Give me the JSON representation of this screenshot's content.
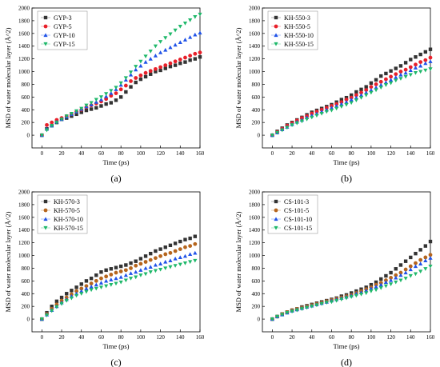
{
  "chart_data": [
    {
      "type": "scatter",
      "panel_label": "(a)",
      "xlabel": "Time (ps)",
      "ylabel": "MSD of water molecular layer (Å^2)",
      "xlim": [
        -10,
        160
      ],
      "ylim": [
        -200,
        2000
      ],
      "xticks": [
        "0",
        "20",
        "40",
        "60",
        "80",
        "100",
        "120",
        "140",
        "160"
      ],
      "yticks": [
        "0",
        "200",
        "400",
        "600",
        "800",
        "1000",
        "1200",
        "1400",
        "1600",
        "1800",
        "2000"
      ],
      "legend_position": "top-left",
      "series": [
        {
          "name": "GYP-3",
          "color": "#333333",
          "marker": "square",
          "values": [
            0,
            100,
            150,
            200,
            250,
            270,
            300,
            330,
            360,
            390,
            410,
            430,
            460,
            490,
            510,
            550,
            600,
            680,
            760,
            830,
            880,
            920,
            960,
            1000,
            1020,
            1050,
            1080,
            1100,
            1130,
            1150,
            1180,
            1200,
            1230,
            1260,
            1280,
            1300
          ]
        },
        {
          "name": "GYP-5",
          "color": "#e8202a",
          "marker": "circle",
          "values": [
            0,
            160,
            200,
            240,
            270,
            300,
            330,
            370,
            400,
            440,
            470,
            500,
            530,
            570,
            620,
            660,
            720,
            780,
            850,
            900,
            940,
            980,
            1010,
            1040,
            1070,
            1100,
            1130,
            1160,
            1190,
            1220,
            1250,
            1280,
            1300,
            1330,
            1370,
            1400
          ]
        },
        {
          "name": "GYP-10",
          "color": "#2053e8",
          "marker": "triangle-up",
          "values": [
            0,
            100,
            150,
            210,
            250,
            290,
            330,
            370,
            410,
            450,
            480,
            520,
            560,
            610,
            660,
            720,
            790,
            870,
            950,
            1030,
            1090,
            1150,
            1200,
            1250,
            1300,
            1340,
            1380,
            1420,
            1460,
            1500,
            1540,
            1580,
            1610,
            1640,
            1670,
            1700
          ]
        },
        {
          "name": "GYP-15",
          "color": "#1fb86a",
          "marker": "triangle-down",
          "values": [
            0,
            80,
            150,
            200,
            250,
            300,
            340,
            380,
            420,
            470,
            510,
            560,
            600,
            650,
            700,
            750,
            820,
            900,
            990,
            1080,
            1160,
            1240,
            1320,
            1400,
            1470,
            1530,
            1590,
            1650,
            1710,
            1760,
            1810,
            1860,
            1900,
            1940,
            1970,
            1990
          ]
        }
      ]
    },
    {
      "type": "scatter",
      "panel_label": "(b)",
      "xlabel": "Time (ps)",
      "ylabel": "MSD of water molecular layer (Å^2)",
      "xlim": [
        -10,
        160
      ],
      "ylim": [
        -200,
        2000
      ],
      "xticks": [
        "0",
        "20",
        "40",
        "60",
        "80",
        "100",
        "120",
        "140",
        "160"
      ],
      "yticks": [
        "0",
        "200",
        "400",
        "600",
        "800",
        "1000",
        "1200",
        "1400",
        "1600",
        "1800",
        "2000"
      ],
      "legend_position": "top-left",
      "series": [
        {
          "name": "KH-550-3",
          "color": "#333333",
          "marker": "square",
          "values": [
            0,
            60,
            110,
            160,
            200,
            240,
            280,
            320,
            360,
            390,
            420,
            450,
            480,
            520,
            560,
            590,
            630,
            680,
            720,
            760,
            820,
            870,
            930,
            970,
            1010,
            1050,
            1090,
            1140,
            1190,
            1230,
            1270,
            1310,
            1350,
            1390,
            1430,
            1470
          ]
        },
        {
          "name": "KH-550-5",
          "color": "#e8202a",
          "marker": "circle",
          "values": [
            0,
            50,
            100,
            150,
            190,
            230,
            270,
            300,
            340,
            370,
            400,
            430,
            460,
            490,
            520,
            560,
            590,
            630,
            670,
            710,
            760,
            800,
            840,
            880,
            920,
            960,
            1000,
            1030,
            1070,
            1110,
            1150,
            1180,
            1220,
            1250,
            1280,
            1310
          ]
        },
        {
          "name": "KH-550-10",
          "color": "#2053e8",
          "marker": "triangle-up",
          "values": [
            0,
            40,
            90,
            130,
            170,
            210,
            240,
            280,
            310,
            340,
            370,
            400,
            430,
            460,
            490,
            520,
            560,
            590,
            630,
            670,
            710,
            750,
            790,
            830,
            870,
            910,
            950,
            980,
            1020,
            1060,
            1090,
            1130,
            1160,
            1190,
            1220,
            1250
          ]
        },
        {
          "name": "KH-550-15",
          "color": "#1fb86a",
          "marker": "triangle-down",
          "values": [
            0,
            40,
            80,
            120,
            160,
            190,
            220,
            250,
            280,
            310,
            340,
            370,
            390,
            420,
            450,
            480,
            510,
            550,
            590,
            630,
            670,
            710,
            750,
            790,
            820,
            860,
            890,
            920,
            950,
            980,
            1000,
            1020,
            1040,
            1060,
            1080,
            1090
          ]
        }
      ]
    },
    {
      "type": "scatter",
      "panel_label": "(c)",
      "xlabel": "Time (ps)",
      "ylabel": "MSD of water molecular layer (Å^2)",
      "xlim": [
        -10,
        160
      ],
      "ylim": [
        -200,
        2000
      ],
      "xticks": [
        "0",
        "20",
        "40",
        "60",
        "80",
        "100",
        "120",
        "140",
        "160"
      ],
      "yticks": [
        "0",
        "200",
        "400",
        "600",
        "800",
        "1000",
        "1200",
        "1400",
        "1600",
        "1800",
        "2000"
      ],
      "legend_position": "top-left",
      "series": [
        {
          "name": "KH-570-3",
          "color": "#333333",
          "marker": "square",
          "values": [
            0,
            100,
            200,
            280,
            340,
            400,
            450,
            500,
            550,
            600,
            640,
            690,
            740,
            770,
            790,
            810,
            830,
            850,
            880,
            910,
            950,
            990,
            1030,
            1070,
            1100,
            1130,
            1160,
            1190,
            1220,
            1250,
            1270,
            1300
          ]
        },
        {
          "name": "KH-570-5",
          "color": "#b5651d",
          "marker": "circle",
          "values": [
            0,
            80,
            160,
            230,
            290,
            340,
            390,
            440,
            480,
            520,
            560,
            600,
            640,
            670,
            700,
            730,
            750,
            770,
            800,
            840,
            870,
            900,
            930,
            960,
            990,
            1020,
            1040,
            1070,
            1100,
            1130,
            1150,
            1180
          ]
        },
        {
          "name": "KH-570-10",
          "color": "#2053e8",
          "marker": "triangle-up",
          "values": [
            0,
            70,
            140,
            200,
            260,
            310,
            360,
            400,
            440,
            480,
            510,
            540,
            570,
            600,
            620,
            640,
            660,
            690,
            720,
            740,
            770,
            800,
            820,
            850,
            870,
            900,
            920,
            950,
            970,
            990,
            1020,
            1040
          ]
        },
        {
          "name": "KH-570-15",
          "color": "#1fb86a",
          "marker": "triangle-down",
          "values": [
            0,
            60,
            130,
            190,
            240,
            290,
            330,
            370,
            400,
            430,
            460,
            480,
            500,
            520,
            540,
            560,
            580,
            610,
            640,
            660,
            690,
            710,
            740,
            760,
            780,
            800,
            820,
            840,
            860,
            880,
            900,
            920
          ]
        }
      ]
    },
    {
      "type": "scatter",
      "panel_label": "(d)",
      "xlabel": "Time (ps)",
      "ylabel": "MSD of water molecular layer (Å^2)",
      "xlim": [
        -10,
        160
      ],
      "ylim": [
        -200,
        2000
      ],
      "xticks": [
        "0",
        "20",
        "40",
        "60",
        "80",
        "100",
        "120",
        "140",
        "160"
      ],
      "yticks": [
        "0",
        "200",
        "400",
        "600",
        "800",
        "1000",
        "1200",
        "1400",
        "1600",
        "1800",
        "2000"
      ],
      "legend_position": "top-left",
      "series": [
        {
          "name": "CS-101-3",
          "color": "#333333",
          "marker": "square",
          "values": [
            0,
            40,
            80,
            110,
            140,
            160,
            190,
            210,
            230,
            250,
            270,
            290,
            310,
            330,
            360,
            380,
            410,
            440,
            470,
            500,
            540,
            580,
            630,
            680,
            730,
            790,
            850,
            910,
            970,
            1030,
            1090,
            1150,
            1220
          ]
        },
        {
          "name": "CS-101-5",
          "color": "#b5651d",
          "marker": "circle",
          "values": [
            0,
            40,
            80,
            110,
            140,
            160,
            180,
            200,
            220,
            240,
            260,
            280,
            300,
            320,
            340,
            360,
            380,
            410,
            440,
            470,
            500,
            540,
            570,
            610,
            650,
            690,
            730,
            780,
            830,
            880,
            930,
            970,
            1010
          ]
        },
        {
          "name": "CS-101-10",
          "color": "#2053e8",
          "marker": "triangle-up",
          "values": [
            0,
            40,
            70,
            100,
            130,
            150,
            170,
            190,
            210,
            230,
            250,
            270,
            290,
            310,
            330,
            350,
            370,
            400,
            420,
            450,
            480,
            510,
            540,
            580,
            610,
            650,
            690,
            730,
            780,
            830,
            870,
            920,
            960
          ]
        },
        {
          "name": "CS-101-15",
          "color": "#1fb86a",
          "marker": "triangle-down",
          "values": [
            0,
            40,
            70,
            100,
            120,
            140,
            160,
            180,
            200,
            220,
            240,
            260,
            270,
            290,
            310,
            330,
            350,
            370,
            390,
            410,
            440,
            460,
            490,
            520,
            550,
            580,
            610,
            640,
            680,
            710,
            750,
            790,
            830
          ]
        }
      ]
    }
  ]
}
